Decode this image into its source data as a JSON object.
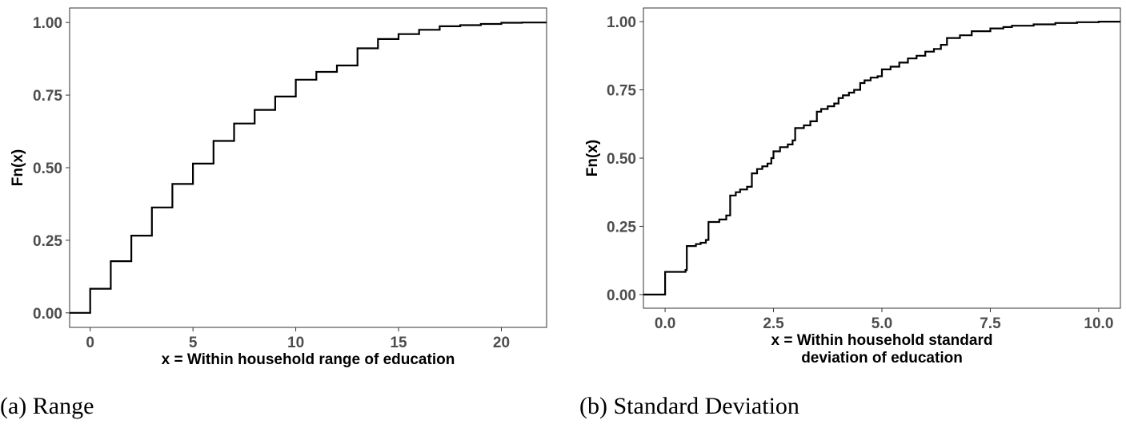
{
  "chart_data": [
    {
      "type": "line",
      "step": true,
      "caption": "(a) Range",
      "xlabel": [
        "x = Within household range of education"
      ],
      "ylabel": "Fn(x)",
      "xlim": [
        -1,
        22.2
      ],
      "ylim": [
        -0.05,
        1.05
      ],
      "xticks": [
        0,
        5,
        10,
        15,
        20
      ],
      "xtick_labels": [
        "0",
        "5",
        "10",
        "15",
        "20"
      ],
      "yticks": [
        0,
        0.25,
        0.5,
        0.75,
        1
      ],
      "ytick_labels": [
        "0.00",
        "0.25",
        "0.50",
        "0.75",
        "1.00"
      ],
      "grid": false,
      "series": [
        {
          "x": [
            -1,
            0,
            1,
            2,
            3,
            4,
            5,
            6,
            7,
            8,
            9,
            10,
            11,
            12,
            13,
            14,
            15,
            16,
            17,
            18,
            19,
            20,
            21,
            22.2
          ],
          "y": [
            0,
            0.083,
            0.178,
            0.266,
            0.363,
            0.444,
            0.514,
            0.592,
            0.652,
            0.699,
            0.745,
            0.803,
            0.83,
            0.852,
            0.911,
            0.943,
            0.96,
            0.975,
            0.987,
            0.991,
            0.995,
            0.999,
            1.0,
            1.0
          ]
        }
      ]
    },
    {
      "type": "line",
      "step": true,
      "caption": "(b) Standard Deviation",
      "xlabel": [
        "x = Within household standard",
        "deviation of education"
      ],
      "ylabel": "Fn(x)",
      "xlim": [
        -0.5,
        10.5
      ],
      "ylim": [
        -0.05,
        1.05
      ],
      "xticks": [
        0,
        2.5,
        5,
        7.5,
        10
      ],
      "xtick_labels": [
        "0.0",
        "2.5",
        "5.0",
        "7.5",
        "10.0"
      ],
      "yticks": [
        0,
        0.25,
        0.5,
        0.75,
        1
      ],
      "ytick_labels": [
        "0.00",
        "0.25",
        "0.50",
        "0.75",
        "1.00"
      ],
      "grid": false,
      "series": [
        {
          "x": [
            -0.5,
            0,
            0.47,
            0.5,
            0.71,
            0.82,
            0.94,
            1.0,
            1.25,
            1.41,
            1.5,
            1.63,
            1.73,
            1.89,
            2.0,
            2.12,
            2.24,
            2.36,
            2.45,
            2.5,
            2.65,
            2.83,
            2.94,
            3.0,
            3.2,
            3.35,
            3.5,
            3.6,
            3.75,
            3.9,
            4.0,
            4.1,
            4.24,
            4.36,
            4.5,
            4.6,
            4.74,
            4.9,
            5.0,
            5.2,
            5.4,
            5.6,
            5.8,
            6.0,
            6.2,
            6.36,
            6.5,
            6.8,
            7.07,
            7.5,
            7.8,
            8.0,
            8.5,
            9.0,
            9.5,
            10.0,
            10.5
          ],
          "y": [
            0,
            0.083,
            0.09,
            0.178,
            0.185,
            0.19,
            0.2,
            0.266,
            0.275,
            0.29,
            0.363,
            0.375,
            0.385,
            0.395,
            0.444,
            0.46,
            0.47,
            0.48,
            0.5,
            0.525,
            0.54,
            0.55,
            0.565,
            0.61,
            0.62,
            0.635,
            0.67,
            0.68,
            0.69,
            0.7,
            0.72,
            0.73,
            0.74,
            0.75,
            0.775,
            0.785,
            0.795,
            0.8,
            0.825,
            0.835,
            0.85,
            0.865,
            0.875,
            0.89,
            0.9,
            0.915,
            0.94,
            0.95,
            0.965,
            0.975,
            0.98,
            0.985,
            0.99,
            0.995,
            0.998,
            1.0,
            1.0
          ]
        }
      ]
    }
  ]
}
